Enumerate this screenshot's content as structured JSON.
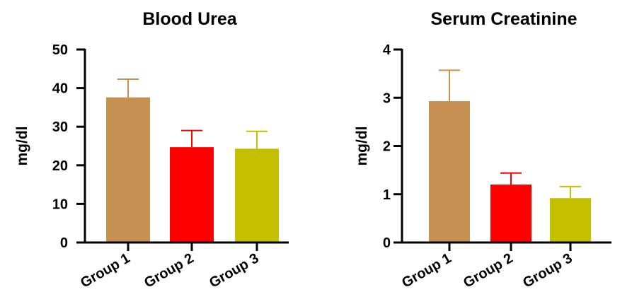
{
  "chart_data": [
    {
      "type": "bar",
      "title": "Blood Urea",
      "ylabel": "mg/dl",
      "xlabel": "",
      "categories": [
        "Group 1",
        "Group 2",
        "Group 3"
      ],
      "values": [
        37.6,
        24.7,
        24.3
      ],
      "errors": [
        4.7,
        4.3,
        4.5
      ],
      "colors": [
        "#c59150",
        "#ff0000",
        "#c4c000"
      ],
      "ylim": [
        0,
        50
      ],
      "yticks": [
        0,
        10,
        20,
        30,
        40,
        50
      ],
      "grid": false,
      "error_bars": "upper-only"
    },
    {
      "type": "bar",
      "title": "Serum Creatinine",
      "ylabel": "mg/dl",
      "xlabel": "",
      "categories": [
        "Group 1",
        "Group 2",
        "Group 3"
      ],
      "values": [
        2.93,
        1.2,
        0.92
      ],
      "errors": [
        0.64,
        0.24,
        0.24
      ],
      "colors": [
        "#c59150",
        "#ff0000",
        "#c4c000"
      ],
      "ylim": [
        0,
        4
      ],
      "yticks": [
        0,
        1,
        2,
        3,
        4
      ],
      "grid": false,
      "error_bars": "upper-only"
    }
  ]
}
